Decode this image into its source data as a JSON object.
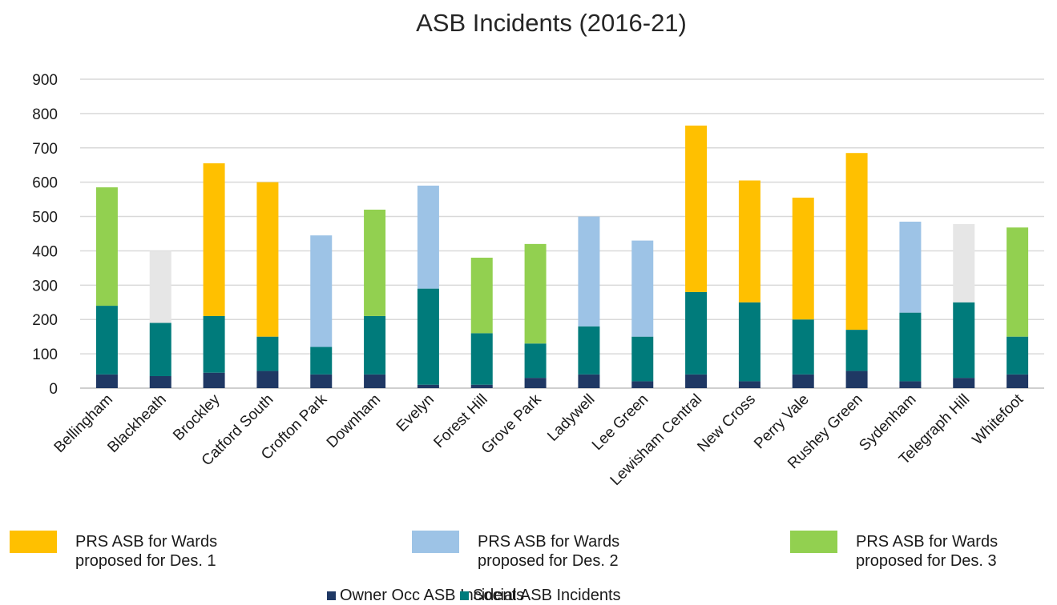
{
  "chart_data": {
    "type": "bar",
    "stacked": true,
    "title": "ASB Incidents (2016-21)",
    "xlabel": "",
    "ylabel": "",
    "ylim": [
      0,
      900
    ],
    "yticks": [
      0,
      100,
      200,
      300,
      400,
      500,
      600,
      700,
      800,
      900
    ],
    "grid": true,
    "categories": [
      "Bellingham",
      "Blackheath",
      "Brockley",
      "Catford South",
      "Crofton Park",
      "Downham",
      "Evelyn",
      "Forest Hill",
      "Grove Park",
      "Ladywell",
      "Lee Green",
      "Lewisham Central",
      "New Cross",
      "Perry Vale",
      "Rushey Green",
      "Sydenham",
      "Telegraph Hill",
      "Whitefoot"
    ],
    "series": [
      {
        "name": "Owner Occ ASB Incidents",
        "color": "#1f3864",
        "values": [
          40,
          35,
          45,
          50,
          40,
          40,
          10,
          10,
          30,
          40,
          20,
          40,
          20,
          40,
          50,
          20,
          30,
          40
        ]
      },
      {
        "name": "Social ASB Incidents",
        "color": "#007b7b",
        "values": [
          200,
          155,
          165,
          100,
          80,
          170,
          280,
          150,
          100,
          140,
          130,
          240,
          230,
          160,
          120,
          200,
          220,
          110
        ]
      },
      {
        "name": "PRS ASB",
        "values": [
          345,
          210,
          445,
          450,
          325,
          310,
          300,
          220,
          290,
          320,
          280,
          485,
          355,
          355,
          515,
          265,
          228,
          318
        ],
        "colors": [
          "#92d050",
          "#e6e6e6",
          "#ffc000",
          "#ffc000",
          "#9dc3e6",
          "#92d050",
          "#9dc3e6",
          "#92d050",
          "#92d050",
          "#9dc3e6",
          "#9dc3e6",
          "#ffc000",
          "#ffc000",
          "#ffc000",
          "#ffc000",
          "#9dc3e6",
          "#e6e6e6",
          "#92d050"
        ]
      }
    ],
    "legend": {
      "des_entries": [
        {
          "line1": "PRS ASB for Wards",
          "line2": "proposed for Des. 1",
          "color": "#ffc000"
        },
        {
          "line1": "PRS ASB for Wards",
          "line2": "proposed for Des. 2",
          "color": "#9dc3e6"
        },
        {
          "line1": "PRS ASB for Wards",
          "line2": "proposed for Des. 3",
          "color": "#92d050"
        }
      ],
      "base_entries": [
        {
          "label": "Owner Occ ASB Incidents",
          "color": "#1f3864"
        },
        {
          "label": "Social ASB Incidents",
          "color": "#007b7b"
        }
      ],
      "placement": "bottom"
    },
    "gridline_color": "#d9d9d9"
  }
}
